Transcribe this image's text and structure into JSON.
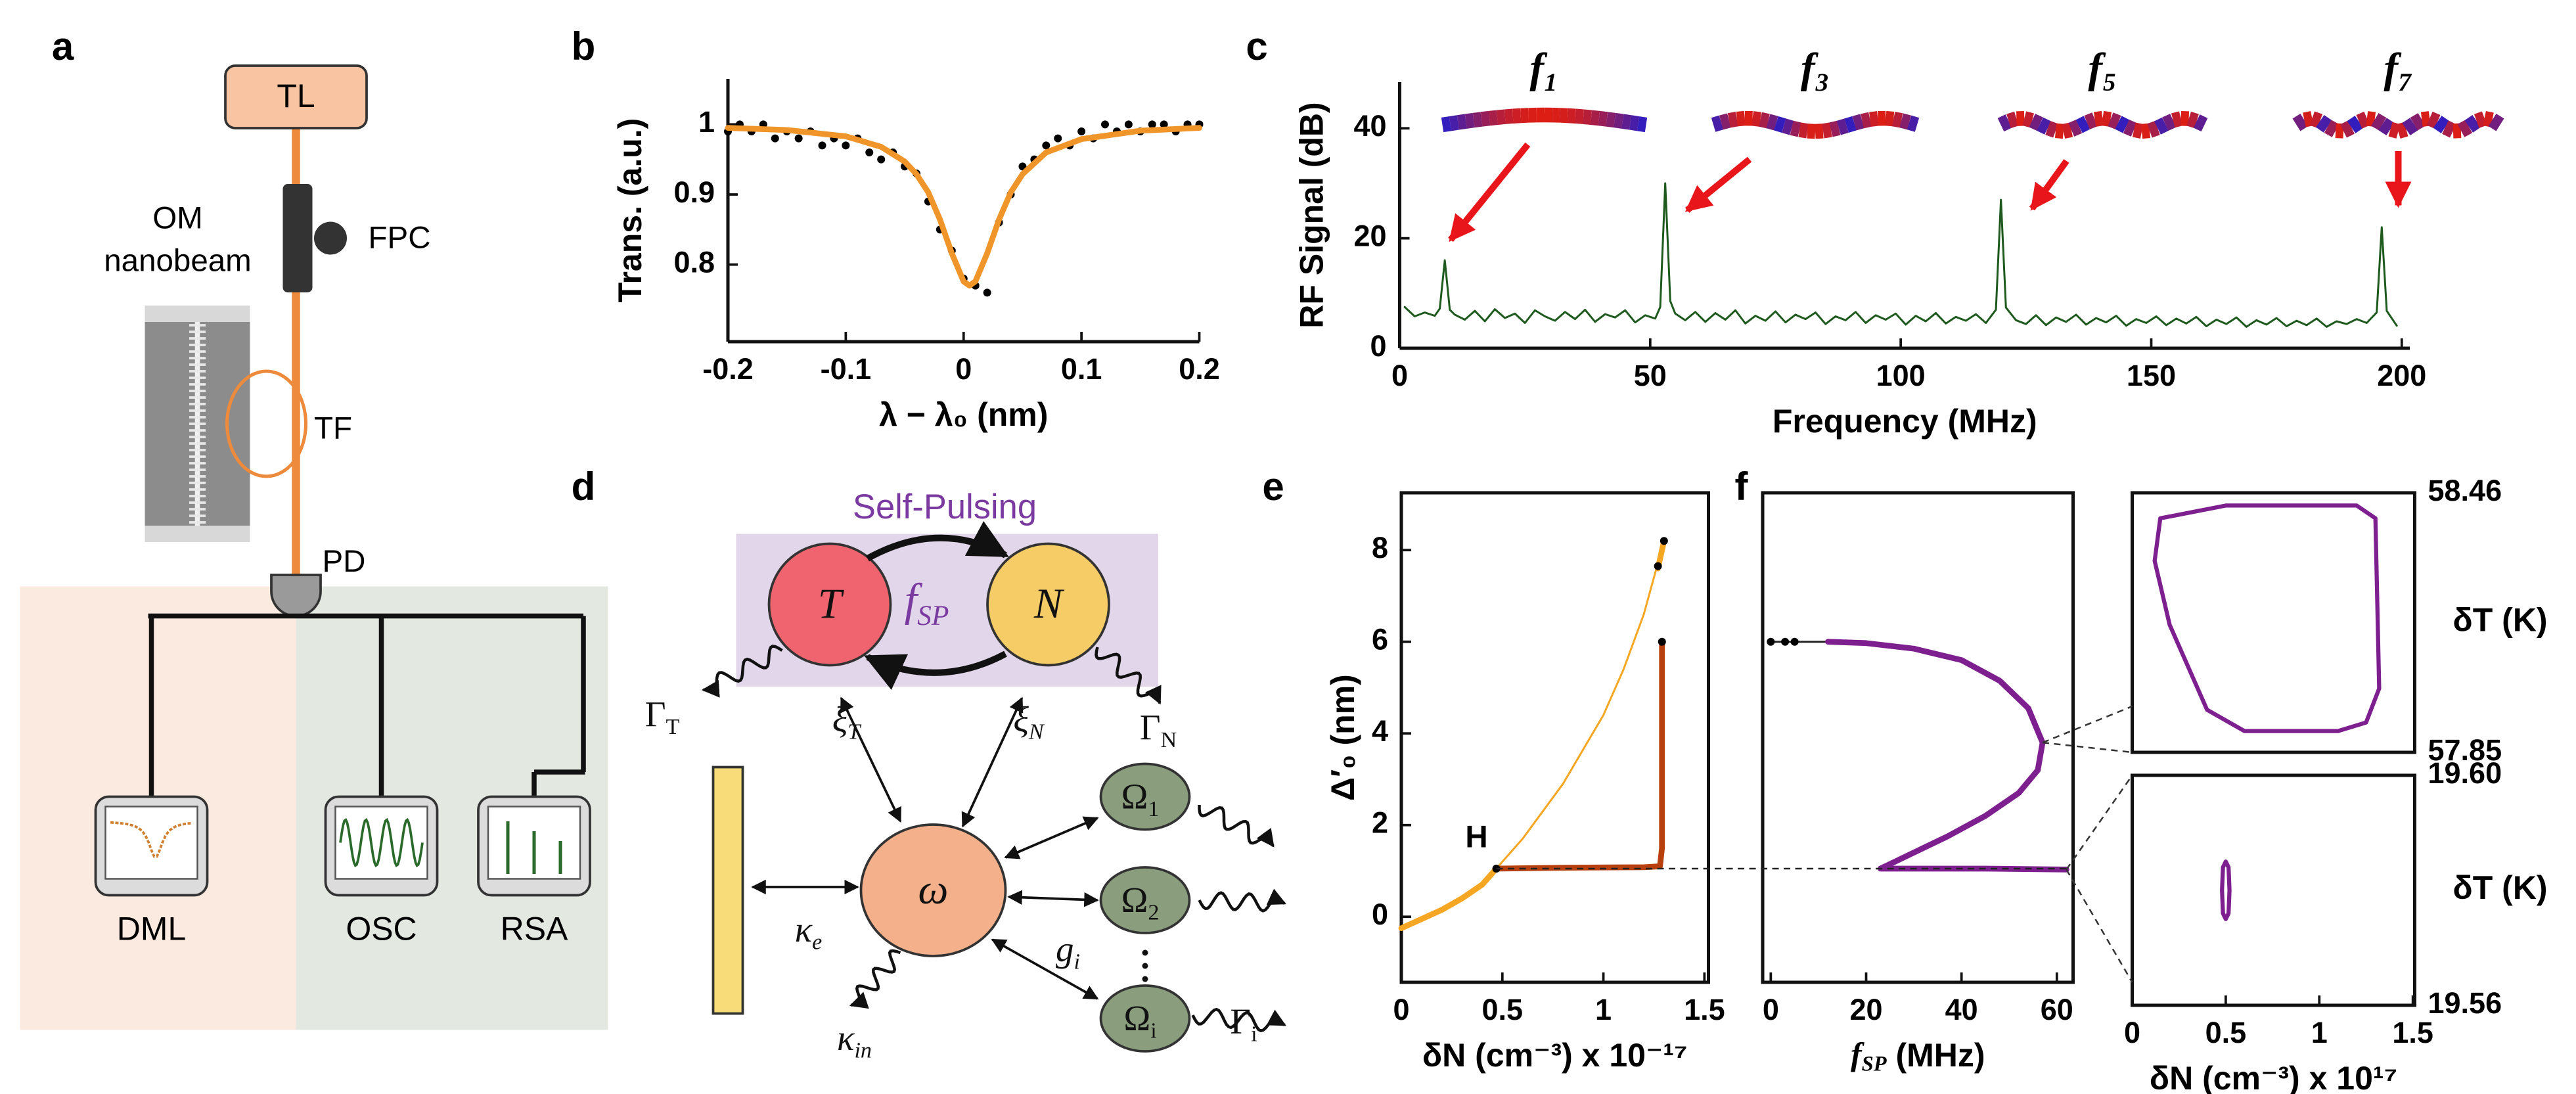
{
  "panels": [
    "a",
    "b",
    "c",
    "d",
    "e",
    "f"
  ],
  "diagram_a": {
    "labels": [
      "TL",
      "FPC",
      "OM",
      "nanobeam",
      "TF",
      "PD",
      "DML",
      "OSC",
      "RSA"
    ]
  },
  "diagram_d": {
    "title": "Self-Pulsing",
    "symbols": [
      {
        "main": "T"
      },
      {
        "main": "N"
      },
      {
        "main": "f",
        "sub": "SP"
      },
      {
        "main": "Γ",
        "sub": "T"
      },
      {
        "main": "Γ",
        "sub": "N"
      },
      {
        "main": "ξ",
        "sub": "T"
      },
      {
        "main": "ξ",
        "sub": "N"
      },
      {
        "main": "ω"
      },
      {
        "main": "κ",
        "sub": "e"
      },
      {
        "main": "κ",
        "sub": "in"
      },
      {
        "main": "Ω",
        "sub": "1"
      },
      {
        "main": "Ω",
        "sub": "2"
      },
      {
        "main": "Ω",
        "sub": "i"
      },
      {
        "main": "g",
        "sub": "i"
      },
      {
        "main": "Γ",
        "sub": "i"
      }
    ]
  },
  "chart_data": [
    {
      "type": "line",
      "xlabel": "λ − λ₀ (nm)",
      "ylabel": "Trans. (a.u.)",
      "xlim": [
        -0.2,
        0.2
      ],
      "ylim": [
        0.69,
        1.065
      ],
      "xticks": [
        -0.2,
        -0.1,
        0,
        0.1,
        0.2
      ],
      "yticks": [
        0.8,
        0.9,
        1
      ],
      "series": [
        {
          "type": "scatter",
          "color": "#000000",
          "x": [
            -0.2,
            -0.19,
            -0.18,
            -0.17,
            -0.16,
            -0.15,
            -0.14,
            -0.13,
            -0.12,
            -0.11,
            -0.1,
            -0.09,
            -0.08,
            -0.07,
            -0.06,
            -0.05,
            -0.04,
            -0.03,
            -0.02,
            -0.01,
            0,
            0.01,
            0.02,
            0.03,
            0.04,
            0.05,
            0.06,
            0.07,
            0.08,
            0.09,
            0.1,
            0.11,
            0.12,
            0.13,
            0.14,
            0.15,
            0.16,
            0.17,
            0.18,
            0.19,
            0.2
          ],
          "values": [
            0.99,
            1.0,
            0.99,
            1.0,
            0.98,
            0.99,
            0.98,
            0.99,
            0.97,
            0.98,
            0.97,
            0.98,
            0.96,
            0.95,
            0.96,
            0.94,
            0.93,
            0.89,
            0.85,
            0.82,
            0.78,
            0.77,
            0.76,
            0.86,
            0.9,
            0.94,
            0.95,
            0.97,
            0.98,
            0.97,
            0.99,
            0.98,
            1.0,
            0.99,
            1.0,
            0.99,
            1.0,
            1.0,
            0.99,
            1.0,
            1.0
          ]
        },
        {
          "type": "line",
          "color": "#f0952a",
          "style": "thick",
          "x": [
            -0.2,
            -0.15,
            -0.1,
            -0.07,
            -0.05,
            -0.04,
            -0.03,
            -0.02,
            -0.01,
            0,
            0.005,
            0.01,
            0.02,
            0.03,
            0.04,
            0.05,
            0.07,
            0.1,
            0.15,
            0.2
          ],
          "values": [
            0.995,
            0.992,
            0.983,
            0.968,
            0.947,
            0.929,
            0.903,
            0.864,
            0.816,
            0.776,
            0.77,
            0.776,
            0.816,
            0.864,
            0.903,
            0.929,
            0.96,
            0.979,
            0.991,
            0.995
          ]
        }
      ]
    },
    {
      "type": "line",
      "xlabel": "Frequency (MHz)",
      "ylabel": "RF Signal (dB)",
      "xlim": [
        0,
        201.6
      ],
      "ylim": [
        0,
        48.4
      ],
      "xticks": [
        0,
        50,
        100,
        150,
        200
      ],
      "yticks": [
        0,
        20,
        40
      ],
      "annotations": [
        "f₁",
        "f₃",
        "f₅",
        "f₇"
      ],
      "series": [
        {
          "type": "line",
          "color": "#1e5a1e",
          "style": "thin",
          "x": [
            1,
            3,
            5,
            7,
            8,
            9,
            10,
            11,
            13,
            15,
            17,
            19,
            21,
            23,
            25,
            27,
            29,
            31,
            33,
            35,
            37,
            39,
            41,
            43,
            45,
            47,
            49,
            51,
            52,
            53,
            54,
            55,
            57,
            59,
            61,
            63,
            65,
            67,
            69,
            71,
            73,
            75,
            77,
            79,
            81,
            83,
            85,
            87,
            89,
            91,
            93,
            95,
            97,
            99,
            101,
            103,
            105,
            107,
            109,
            111,
            113,
            115,
            117,
            119,
            120,
            121,
            123,
            125,
            127,
            129,
            131,
            133,
            135,
            137,
            139,
            141,
            143,
            145,
            147,
            149,
            151,
            153,
            155,
            157,
            159,
            161,
            163,
            165,
            167,
            169,
            171,
            173,
            175,
            177,
            179,
            181,
            183,
            185,
            187,
            189,
            191,
            193,
            195,
            196,
            197,
            199
          ],
          "values": [
            7.5,
            5.8,
            6.5,
            5.9,
            7.2,
            16,
            7.0,
            6.1,
            5.2,
            6.8,
            4.9,
            7.1,
            5.5,
            6.3,
            4.6,
            6.9,
            5.8,
            5.0,
            6.6,
            5.3,
            7.0,
            4.8,
            6.2,
            5.6,
            6.9,
            4.7,
            6.0,
            5.4,
            7.5,
            30,
            8.6,
            6.3,
            5.1,
            6.6,
            4.8,
            6.4,
            5.2,
            6.9,
            4.5,
            5.9,
            5.0,
            6.7,
            4.7,
            6.1,
            5.3,
            6.5,
            4.4,
            5.8,
            5.1,
            6.6,
            4.6,
            6.0,
            5.2,
            6.3,
            4.3,
            5.9,
            4.9,
            6.4,
            4.5,
            5.7,
            5.0,
            6.2,
            4.6,
            7.0,
            27,
            7.4,
            5.1,
            4.4,
            6.0,
            4.2,
            5.6,
            4.8,
            6.1,
            4.3,
            5.5,
            4.7,
            5.9,
            4.1,
            5.3,
            4.6,
            5.8,
            4.2,
            5.4,
            4.5,
            5.7,
            4.0,
            5.2,
            4.4,
            5.6,
            3.9,
            5.1,
            4.3,
            5.5,
            4.0,
            5.0,
            4.2,
            5.4,
            3.9,
            4.9,
            4.4,
            5.3,
            4.6,
            6.5,
            22,
            6.8,
            4.1
          ]
        }
      ]
    },
    {
      "type": "line",
      "xlabel": "δN (cm⁻³) x 10⁻¹⁷",
      "ylabel": "Δ′₀ (nm)",
      "xlim": [
        0,
        1.52
      ],
      "ylim": [
        -1.43,
        9.25
      ],
      "xticks": [
        0,
        0.5,
        1,
        1.5
      ],
      "yticks": [
        0,
        2,
        4,
        6,
        8
      ],
      "annotations": [
        "H"
      ],
      "series": [
        {
          "type": "line",
          "color": "#f5a623",
          "style": "thick",
          "x": [
            0,
            0.1,
            0.2,
            0.3,
            0.4,
            0.47
          ],
          "values": [
            -0.25,
            -0.05,
            0.15,
            0.4,
            0.7,
            1.05
          ]
        },
        {
          "type": "line",
          "color": "#f5a623",
          "style": "thin",
          "x": [
            0.47,
            0.6,
            0.8,
            1.0,
            1.1,
            1.2,
            1.3
          ],
          "values": [
            1.05,
            1.7,
            2.9,
            4.4,
            5.4,
            6.6,
            8.2
          ]
        },
        {
          "type": "line",
          "color": "#b8400f",
          "style": "thick",
          "x": [
            0.47,
            0.8,
            1.2,
            1.28,
            1.29,
            1.29
          ],
          "values": [
            1.05,
            1.07,
            1.08,
            1.1,
            1.5,
            6.0
          ]
        },
        {
          "type": "line",
          "color": "#f5a623",
          "style": "thick",
          "x": [
            1.27,
            1.3
          ],
          "values": [
            7.6,
            8.2
          ]
        },
        {
          "type": "scatter",
          "color": "#000000",
          "x": [
            0.47,
            1.29,
            1.27,
            1.3
          ],
          "values": [
            1.05,
            6.0,
            7.65,
            8.2
          ]
        }
      ]
    },
    {
      "type": "line",
      "xlabel": {
        "main": "f",
        "sub": "SP",
        "rest": " (MHz)"
      },
      "xlim": [
        -1.7,
        63.4
      ],
      "ylim": [
        -1.43,
        9.25
      ],
      "xticks": [
        0,
        20,
        40,
        60
      ],
      "series": [
        {
          "type": "line",
          "color": "#222222",
          "style": "thin",
          "x": [
            0,
            3,
            5,
            12
          ],
          "values": [
            6,
            6,
            6,
            6
          ]
        },
        {
          "type": "line",
          "color": "#7d1f8e",
          "style": "thick",
          "x": [
            12,
            20,
            30,
            40,
            48,
            54,
            57,
            56,
            52,
            45,
            37,
            30,
            25,
            23,
            30,
            45,
            62
          ],
          "values": [
            6,
            5.97,
            5.85,
            5.6,
            5.15,
            4.55,
            3.8,
            3.2,
            2.7,
            2.2,
            1.75,
            1.4,
            1.15,
            1.05,
            1.05,
            1.05,
            1.03
          ]
        },
        {
          "type": "scatter",
          "color": "#000000",
          "x": [
            0,
            3,
            5
          ],
          "values": [
            6,
            6,
            6
          ]
        }
      ]
    },
    {
      "type": "line",
      "ylabel": "δT (K)",
      "xlim": [
        0,
        1.51
      ],
      "ylim": [
        57.85,
        58.46
      ],
      "yticks": [
        57.85,
        58.46
      ],
      "series": [
        {
          "type": "line",
          "color": "#7d1f8e",
          "style": "mid",
          "x": [
            0.15,
            0.5,
            1.2,
            1.3,
            1.32,
            1.25,
            1.1,
            0.6,
            0.4,
            0.2,
            0.12,
            0.15
          ],
          "values": [
            58.4,
            58.43,
            58.43,
            58.4,
            58.0,
            57.92,
            57.9,
            57.9,
            57.95,
            58.15,
            58.3,
            58.4
          ]
        }
      ]
    },
    {
      "type": "line",
      "xlabel": "δN (cm⁻³) x 10¹⁷",
      "ylabel": "δT (K)",
      "xlim": [
        0,
        1.51
      ],
      "ylim": [
        19.56,
        19.6
      ],
      "xticks": [
        0,
        0.5,
        1,
        1.5
      ],
      "yticks": [
        19.56,
        {
          "value": 19.6,
          "label": "19.60"
        }
      ],
      "series": [
        {
          "type": "line",
          "color": "#7d1f8e",
          "style": "mid",
          "x": [
            0.48,
            0.485,
            0.5,
            0.515,
            0.52,
            0.515,
            0.5,
            0.485,
            0.48
          ],
          "values": [
            19.58,
            19.584,
            19.585,
            19.584,
            19.58,
            19.576,
            19.575,
            19.576,
            19.58
          ]
        }
      ]
    }
  ]
}
